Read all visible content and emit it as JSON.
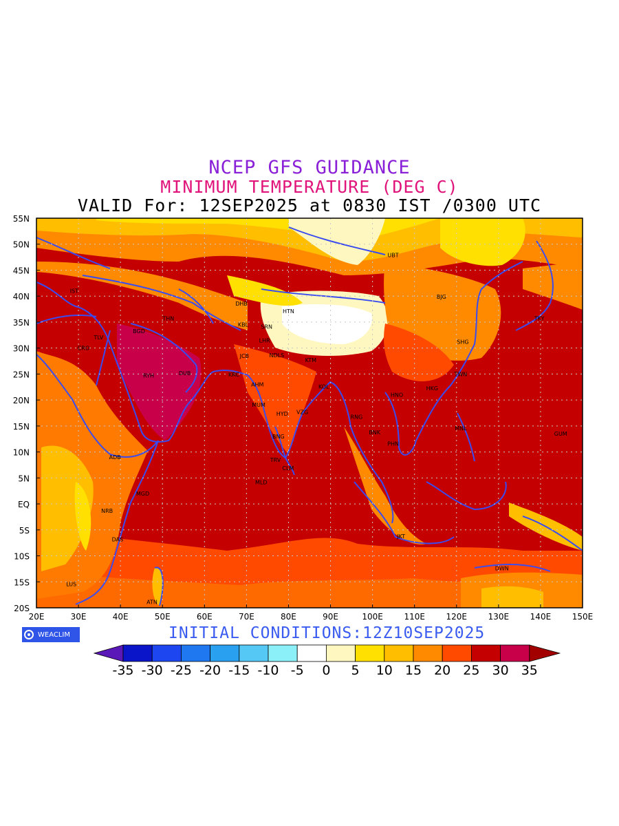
{
  "titles": {
    "line1": "NCEP GFS GUIDANCE",
    "line2": "MINIMUM TEMPERATURE (DEG C)",
    "line3": "VALID For: 12SEP2025 at 0830 IST /0300 UTC"
  },
  "footer": {
    "logo_text": "WEACLIM",
    "initial_conditions": "INITIAL CONDITIONS:12Z10SEP2025"
  },
  "map": {
    "lon_ticks": [
      "20E",
      "30E",
      "40E",
      "50E",
      "60E",
      "70E",
      "80E",
      "90E",
      "100E",
      "110E",
      "120E",
      "130E",
      "140E",
      "150E"
    ],
    "lat_ticks": [
      "55N",
      "50N",
      "45N",
      "40N",
      "35N",
      "30N",
      "25N",
      "20N",
      "15N",
      "10N",
      "5N",
      "EQ",
      "5S",
      "10S",
      "15S",
      "20S"
    ],
    "stations": [
      {
        "code": "UBT",
        "lon": 104.9,
        "lat": 47.9
      },
      {
        "code": "BJG",
        "lon": 116.4,
        "lat": 39.9
      },
      {
        "code": "TKY",
        "lon": 139.7,
        "lat": 35.7
      },
      {
        "code": "SHG",
        "lon": 121.5,
        "lat": 31.2
      },
      {
        "code": "TWN",
        "lon": 121.0,
        "lat": 25.0
      },
      {
        "code": "HKG",
        "lon": 114.2,
        "lat": 22.3
      },
      {
        "code": "HNO",
        "lon": 105.8,
        "lat": 21.0
      },
      {
        "code": "MNL",
        "lon": 121.0,
        "lat": 14.6
      },
      {
        "code": "GUM",
        "lon": 144.8,
        "lat": 13.5
      },
      {
        "code": "RNG",
        "lon": 96.2,
        "lat": 16.8
      },
      {
        "code": "BNK",
        "lon": 100.5,
        "lat": 13.8
      },
      {
        "code": "PHN",
        "lon": 104.9,
        "lat": 11.6
      },
      {
        "code": "JKT",
        "lon": 106.8,
        "lat": -6.2
      },
      {
        "code": "DWN",
        "lon": 130.8,
        "lat": -12.4
      },
      {
        "code": "IST",
        "lon": 29.0,
        "lat": 41.0
      },
      {
        "code": "TLV",
        "lon": 34.8,
        "lat": 32.1
      },
      {
        "code": "CRO",
        "lon": 31.2,
        "lat": 30.0
      },
      {
        "code": "BGD",
        "lon": 44.4,
        "lat": 33.3
      },
      {
        "code": "THN",
        "lon": 51.4,
        "lat": 35.7
      },
      {
        "code": "RYH",
        "lon": 46.7,
        "lat": 24.7
      },
      {
        "code": "DUB",
        "lon": 55.3,
        "lat": 25.2
      },
      {
        "code": "DHB",
        "lon": 68.8,
        "lat": 38.6
      },
      {
        "code": "HTN",
        "lon": 80.0,
        "lat": 37.1
      },
      {
        "code": "KBL",
        "lon": 69.2,
        "lat": 34.5
      },
      {
        "code": "SRN",
        "lon": 74.8,
        "lat": 34.1
      },
      {
        "code": "LHR",
        "lon": 74.3,
        "lat": 31.5
      },
      {
        "code": "JCB",
        "lon": 69.5,
        "lat": 28.5
      },
      {
        "code": "NDLS",
        "lon": 77.2,
        "lat": 28.6
      },
      {
        "code": "KTM",
        "lon": 85.3,
        "lat": 27.7
      },
      {
        "code": "KRC",
        "lon": 67.0,
        "lat": 24.9
      },
      {
        "code": "AHM",
        "lon": 72.6,
        "lat": 23.0
      },
      {
        "code": "KOL",
        "lon": 88.4,
        "lat": 22.6
      },
      {
        "code": "MUM",
        "lon": 72.9,
        "lat": 19.1
      },
      {
        "code": "HYD",
        "lon": 78.5,
        "lat": 17.4
      },
      {
        "code": "VZG",
        "lon": 83.3,
        "lat": 17.7
      },
      {
        "code": "BNG",
        "lon": 77.6,
        "lat": 13.0
      },
      {
        "code": "TRV",
        "lon": 76.9,
        "lat": 8.5
      },
      {
        "code": "CLM",
        "lon": 79.9,
        "lat": 6.9
      },
      {
        "code": "MLD",
        "lon": 73.5,
        "lat": 4.2
      },
      {
        "code": "ADB",
        "lon": 38.7,
        "lat": 9.0
      },
      {
        "code": "MGD",
        "lon": 45.3,
        "lat": 2.0
      },
      {
        "code": "NRB",
        "lon": 36.8,
        "lat": -1.3
      },
      {
        "code": "DAS",
        "lon": 39.3,
        "lat": -6.8
      },
      {
        "code": "LUS",
        "lon": 28.3,
        "lat": -15.4
      },
      {
        "code": "ATN",
        "lon": 47.5,
        "lat": -18.9
      }
    ]
  },
  "colorbar": {
    "labels": [
      "-35",
      "-30",
      "-25",
      "-20",
      "-15",
      "-10",
      "-5",
      "0",
      "5",
      "10",
      "15",
      "20",
      "25",
      "30",
      "35"
    ],
    "colors": [
      "#5a18b8",
      "#0a14c8",
      "#1e46f0",
      "#1f78f0",
      "#29a0f0",
      "#55c8f5",
      "#8cf0f8",
      "#ffffff",
      "#fff7c0",
      "#ffe000",
      "#ffbe00",
      "#ff8a00",
      "#ff4a00",
      "#c40000",
      "#c8004a",
      "#a20000"
    ]
  }
}
